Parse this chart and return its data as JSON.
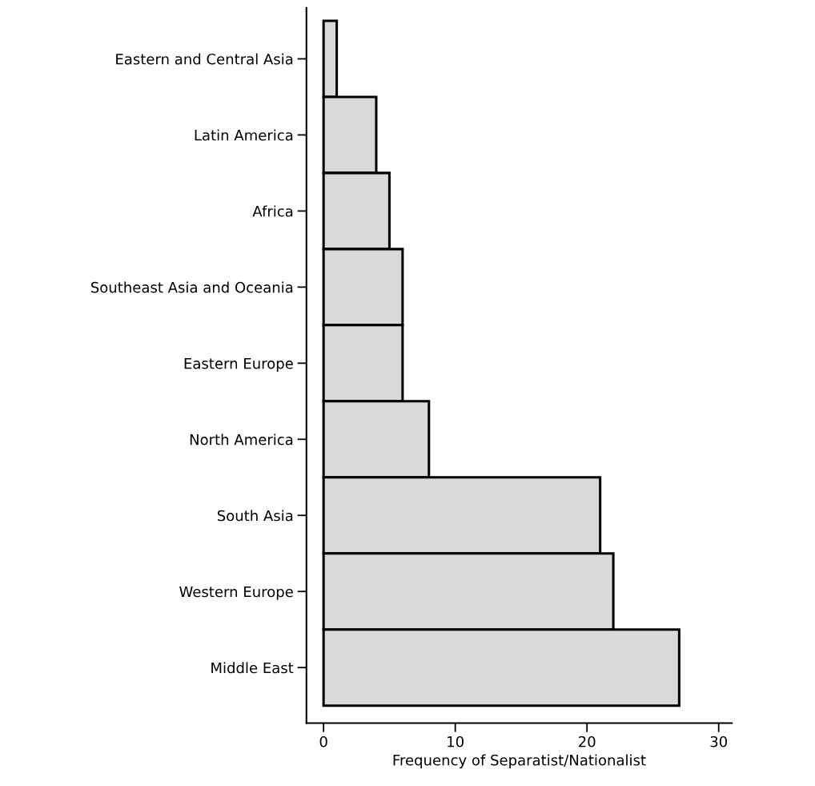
{
  "chart_data": {
    "type": "bar",
    "orientation": "horizontal",
    "xlabel": "Frequency of Separatist/Nationalist",
    "categories": [
      "Eastern and Central Asia",
      "Latin America",
      "Africa",
      "Southeast Asia and Oceania",
      "Eastern Europe",
      "North America",
      "South Asia",
      "Western Europe",
      "Middle East"
    ],
    "values": [
      1,
      4,
      5,
      6,
      6,
      8,
      21,
      22,
      27
    ],
    "color": "#d9d9d9",
    "xlim": [
      -1.3,
      31
    ],
    "xticks": [
      0,
      10,
      20,
      30
    ],
    "grid": false,
    "legend": false
  }
}
